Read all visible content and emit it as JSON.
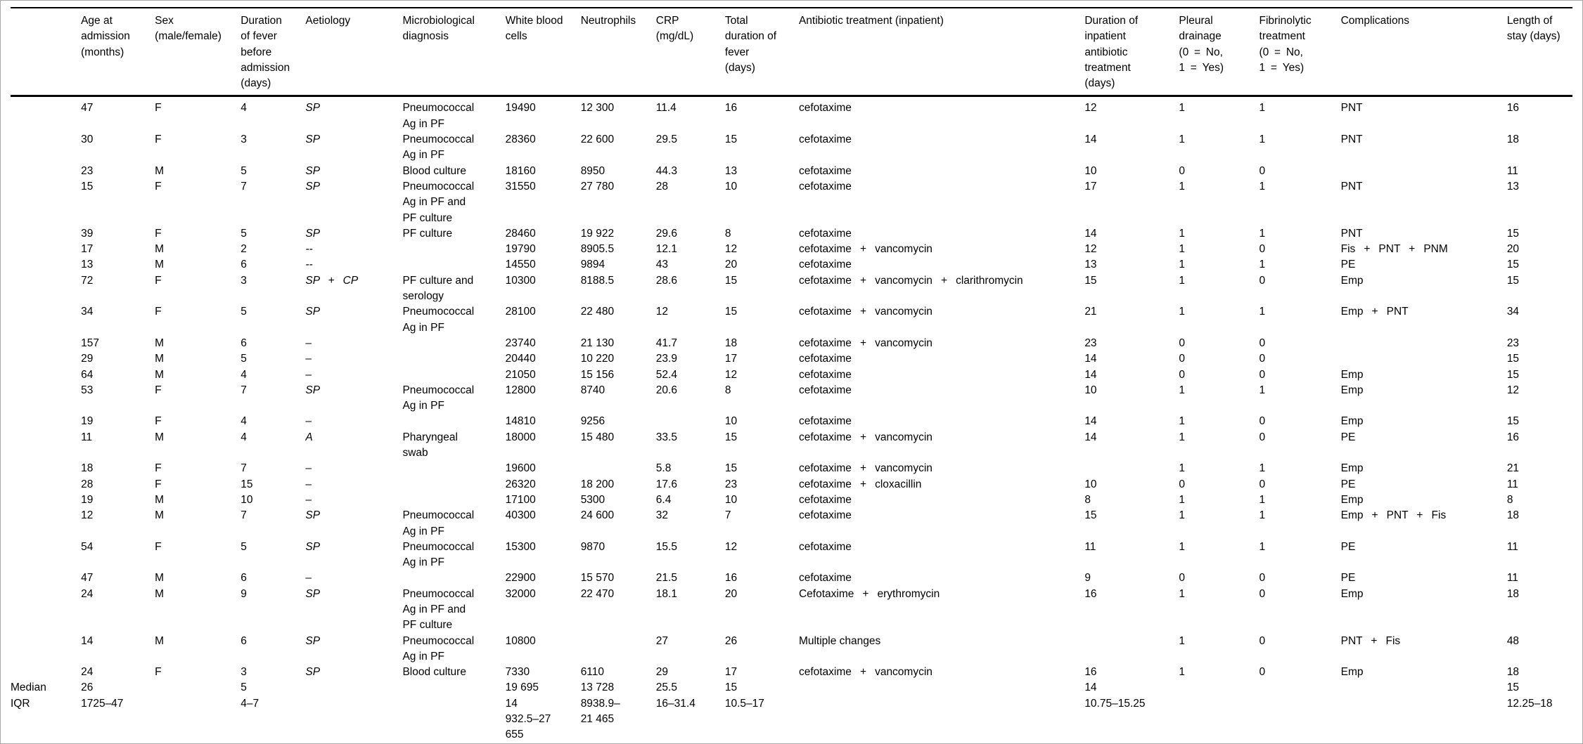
{
  "colors": {
    "background": "#ffffff",
    "text": "#000000",
    "rule": "#000000",
    "frame_border": "#a8a8a8"
  },
  "table": {
    "columns": [
      {
        "label": ""
      },
      {
        "label": "Age at\nadmission\n(months)"
      },
      {
        "label": "Sex\n(male/female)"
      },
      {
        "label": "Duration\nof fever\nbefore\nadmission\n(days)"
      },
      {
        "label": "Aetiology"
      },
      {
        "label": "Microbiological\ndiagnosis"
      },
      {
        "label": "White blood\ncells"
      },
      {
        "label": "Neutrophils"
      },
      {
        "label": "CRP\n(mg/dL)"
      },
      {
        "label": "Total\nduration of\nfever\n(days)"
      },
      {
        "label": "Antibiotic treatment (inpatient)"
      },
      {
        "label": "Duration of\ninpatient\nantibiotic\ntreatment\n(days)"
      },
      {
        "label": "Pleural\ndrainage\n(0 = No,\n1 = Yes)"
      },
      {
        "label": "Fibrinolytic\ntreatment\n(0 = No,\n1 = Yes)"
      },
      {
        "label": "Complications"
      },
      {
        "label": "Length of\nstay (days)"
      }
    ],
    "rows": [
      [
        "",
        "47",
        "F",
        "4",
        "SP",
        "Pneumococcal\nAg in PF",
        "19490",
        "12 300",
        "11.4",
        "16",
        "cefotaxime",
        "12",
        "1",
        "1",
        "PNT",
        "16"
      ],
      [
        "",
        "30",
        "F",
        "3",
        "SP",
        "Pneumococcal\nAg in PF",
        "28360",
        "22 600",
        "29.5",
        "15",
        "cefotaxime",
        "14",
        "1",
        "1",
        "PNT",
        "18"
      ],
      [
        "",
        "23",
        "M",
        "5",
        "SP",
        "Blood culture",
        "18160",
        "8950",
        "44.3",
        "13",
        "cefotaxime",
        "10",
        "0",
        "0",
        "",
        "11"
      ],
      [
        "",
        "15",
        "F",
        "7",
        "SP",
        "Pneumococcal\nAg in PF and\nPF culture",
        "31550",
        "27 780",
        "28",
        "10",
        "cefotaxime",
        "17",
        "1",
        "1",
        "PNT",
        "13"
      ],
      [
        "",
        "39",
        "F",
        "5",
        "SP",
        "PF culture",
        "28460",
        "19 922",
        "29.6",
        "8",
        "cefotaxime",
        "14",
        "1",
        "1",
        "PNT",
        "15"
      ],
      [
        "",
        "17",
        "M",
        "2",
        "--",
        "",
        "19790",
        "8905.5",
        "12.1",
        "12",
        "cefotaxime  +  vancomycin",
        "12",
        "1",
        "0",
        "Fis  +  PNT  +  PNM",
        "20"
      ],
      [
        "",
        "13",
        "M",
        "6",
        "--",
        "",
        "14550",
        "9894",
        "43",
        "20",
        "cefotaxime",
        "13",
        "1",
        "1",
        "PE",
        "15"
      ],
      [
        "",
        "72",
        "F",
        "3",
        "SP  +  CP",
        "PF culture and\nserology",
        "10300",
        "8188.5",
        "28.6",
        "15",
        "cefotaxime  +  vancomycin  +  clarithromycin",
        "15",
        "1",
        "0",
        "Emp",
        "15"
      ],
      [
        "",
        "34",
        "F",
        "5",
        "SP",
        "Pneumococcal\nAg in PF",
        "28100",
        "22 480",
        "12",
        "15",
        "cefotaxime  +  vancomycin",
        "21",
        "1",
        "1",
        "Emp  +  PNT",
        "34"
      ],
      [
        "",
        "157",
        "M",
        "6",
        "–",
        "",
        "23740",
        "21 130",
        "41.7",
        "18",
        "cefotaxime  +  vancomycin",
        "23",
        "0",
        "0",
        "",
        "23"
      ],
      [
        "",
        "29",
        "M",
        "5",
        "–",
        "",
        "20440",
        "10 220",
        "23.9",
        "17",
        "cefotaxime",
        "14",
        "0",
        "0",
        "",
        "15"
      ],
      [
        "",
        "64",
        "M",
        "4",
        "–",
        "",
        "21050",
        "15 156",
        "52.4",
        "12",
        "cefotaxime",
        "14",
        "0",
        "0",
        "Emp",
        "15"
      ],
      [
        "",
        "53",
        "F",
        "7",
        "SP",
        "Pneumococcal\nAg in PF",
        "12800",
        "8740",
        "20.6",
        "8",
        "cefotaxime",
        "10",
        "1",
        "1",
        "Emp",
        "12"
      ],
      [
        "",
        "19",
        "F",
        "4",
        "–",
        "",
        "14810",
        "9256",
        "",
        "10",
        "cefotaxime",
        "14",
        "1",
        "0",
        "Emp",
        "15"
      ],
      [
        "",
        "11",
        "M",
        "4",
        "A",
        "Pharyngeal\nswab",
        "18000",
        "15 480",
        "33.5",
        "15",
        "cefotaxime  +  vancomycin",
        "14",
        "1",
        "0",
        "PE",
        "16"
      ],
      [
        "",
        "18",
        "F",
        "7",
        "–",
        "",
        "19600",
        "",
        "5.8",
        "15",
        "cefotaxime  +  vancomycin",
        "",
        "1",
        "1",
        "Emp",
        "21"
      ],
      [
        "",
        "28",
        "F",
        "15",
        "–",
        "",
        "26320",
        "18 200",
        "17.6",
        "23",
        "cefotaxime  +  cloxacillin",
        "10",
        "0",
        "0",
        "PE",
        "11"
      ],
      [
        "",
        "19",
        "M",
        "10",
        "–",
        "",
        "17100",
        "5300",
        "6.4",
        "10",
        "cefotaxime",
        "8",
        "1",
        "1",
        "Emp",
        "8"
      ],
      [
        "",
        "12",
        "M",
        "7",
        "SP",
        "Pneumococcal\nAg in PF",
        "40300",
        "24 600",
        "32",
        "7",
        "cefotaxime",
        "15",
        "1",
        "1",
        "Emp  +  PNT  +  Fis",
        "18"
      ],
      [
        "",
        "54",
        "F",
        "5",
        "SP",
        "Pneumococcal\nAg in PF",
        "15300",
        "9870",
        "15.5",
        "12",
        "cefotaxime",
        "11",
        "1",
        "1",
        "PE",
        "11"
      ],
      [
        "",
        "47",
        "M",
        "6",
        "–",
        "",
        "22900",
        "15 570",
        "21.5",
        "16",
        "cefotaxime",
        "9",
        "0",
        "0",
        "PE",
        "11"
      ],
      [
        "",
        "24",
        "M",
        "9",
        "SP",
        "Pneumococcal\nAg in PF and\nPF culture",
        "32000",
        "22 470",
        "18.1",
        "20",
        "Cefotaxime  +  erythromycin",
        "16",
        "1",
        "0",
        "Emp",
        "18"
      ],
      [
        "",
        "14",
        "M",
        "6",
        "SP",
        "Pneumococcal\nAg in PF",
        "10800",
        "",
        "27",
        "26",
        "Multiple changes",
        "",
        "1",
        "0",
        "PNT  +  Fis",
        "48"
      ],
      [
        "",
        "24",
        "F",
        "3",
        "SP",
        "Blood culture",
        "7330",
        "6110",
        "29",
        "17",
        "cefotaxime  +  vancomycin",
        "16",
        "1",
        "0",
        "Emp",
        "18"
      ],
      [
        "Median",
        "26",
        "",
        "5",
        "",
        "",
        "19 695",
        "13 728",
        "25.5",
        "15",
        "",
        "14",
        "",
        "",
        "",
        "15"
      ],
      [
        "IQR",
        "1725–47",
        "",
        "4–7",
        "",
        "",
        "14\n932.5–27\n655",
        "8938.9–\n21 465",
        "16–31.4",
        "10.5–17",
        "",
        "10.75–15.25",
        "",
        "",
        "",
        "12.25–18"
      ]
    ]
  }
}
